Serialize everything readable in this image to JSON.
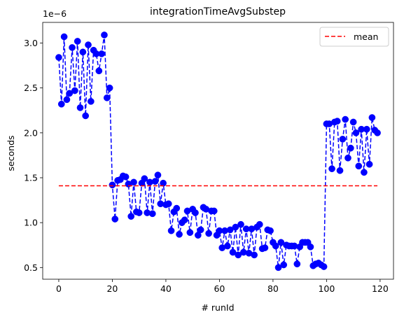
{
  "chart_data": {
    "type": "line",
    "title": "integrationTimeAvgSubstep",
    "xlabel": "# runId",
    "ylabel": "seconds",
    "y_offset_label": "1e−6",
    "xlim": [
      -6,
      125
    ],
    "ylim": [
      0.37,
      3.23
    ],
    "xticks": [
      0,
      20,
      40,
      60,
      80,
      100,
      120
    ],
    "xtick_labels": [
      "0",
      "20",
      "40",
      "60",
      "80",
      "100",
      "120"
    ],
    "yticks": [
      0.5,
      1.0,
      1.5,
      2.0,
      2.5,
      3.0
    ],
    "ytick_labels": [
      "0.5",
      "1.0",
      "1.5",
      "2.0",
      "2.5",
      "3.0"
    ],
    "grid": false,
    "legend": {
      "position": "top-right",
      "entries": [
        "mean"
      ]
    },
    "series": [
      {
        "kind": "data",
        "style": "dashed-line-with-markers",
        "color": "#0000ff",
        "x": [
          0,
          1,
          2,
          3,
          4,
          5,
          6,
          7,
          8,
          9,
          10,
          11,
          12,
          13,
          14,
          15,
          16,
          17,
          18,
          19,
          20,
          21,
          22,
          23,
          24,
          25,
          26,
          27,
          28,
          29,
          30,
          31,
          32,
          33,
          34,
          35,
          36,
          37,
          38,
          39,
          40,
          41,
          42,
          43,
          44,
          45,
          46,
          47,
          48,
          49,
          50,
          51,
          52,
          53,
          54,
          55,
          56,
          57,
          58,
          59,
          60,
          61,
          62,
          63,
          64,
          65,
          66,
          67,
          68,
          69,
          70,
          71,
          72,
          73,
          74,
          75,
          76,
          77,
          78,
          79,
          80,
          81,
          82,
          83,
          84,
          85,
          86,
          87,
          88,
          89,
          90,
          91,
          92,
          93,
          94,
          95,
          96,
          97,
          98,
          99,
          100,
          101,
          102,
          103,
          104,
          105,
          106,
          107,
          108,
          109,
          110,
          111,
          112,
          113,
          114,
          115,
          116,
          117,
          118,
          119
        ],
        "y": [
          2.84,
          2.32,
          3.07,
          2.37,
          2.44,
          2.95,
          2.47,
          3.02,
          2.28,
          2.9,
          2.19,
          2.98,
          2.35,
          2.92,
          2.88,
          2.69,
          2.88,
          3.09,
          2.39,
          2.5,
          1.42,
          1.04,
          1.47,
          1.48,
          1.52,
          1.51,
          1.43,
          1.07,
          1.45,
          1.12,
          1.11,
          1.44,
          1.49,
          1.11,
          1.45,
          1.1,
          1.46,
          1.53,
          1.21,
          1.44,
          1.2,
          1.21,
          0.91,
          1.12,
          1.16,
          0.87,
          1.0,
          1.03,
          1.13,
          0.89,
          1.15,
          1.11,
          0.86,
          0.92,
          1.17,
          1.15,
          0.88,
          1.13,
          1.13,
          0.86,
          0.91,
          0.72,
          0.91,
          0.74,
          0.92,
          0.67,
          0.95,
          0.64,
          0.98,
          0.67,
          0.93,
          0.66,
          0.93,
          0.64,
          0.95,
          0.98,
          0.71,
          0.72,
          0.92,
          0.91,
          0.78,
          0.74,
          0.5,
          0.78,
          0.53,
          0.75,
          0.74,
          0.74,
          0.74,
          0.54,
          0.73,
          0.78,
          0.78,
          0.78,
          0.73,
          0.52,
          0.54,
          0.55,
          0.53,
          0.51,
          2.1,
          2.1,
          1.6,
          2.12,
          2.13,
          1.58,
          1.93,
          2.15,
          1.72,
          1.83,
          2.12,
          2.0,
          1.63,
          2.04,
          1.56,
          2.04,
          1.65,
          2.17,
          2.03,
          2.0
        ]
      },
      {
        "kind": "mean",
        "name": "mean",
        "style": "dashed-line",
        "color": "#ff0000",
        "x": [
          0,
          119
        ],
        "y": [
          1.41,
          1.41
        ]
      }
    ]
  }
}
